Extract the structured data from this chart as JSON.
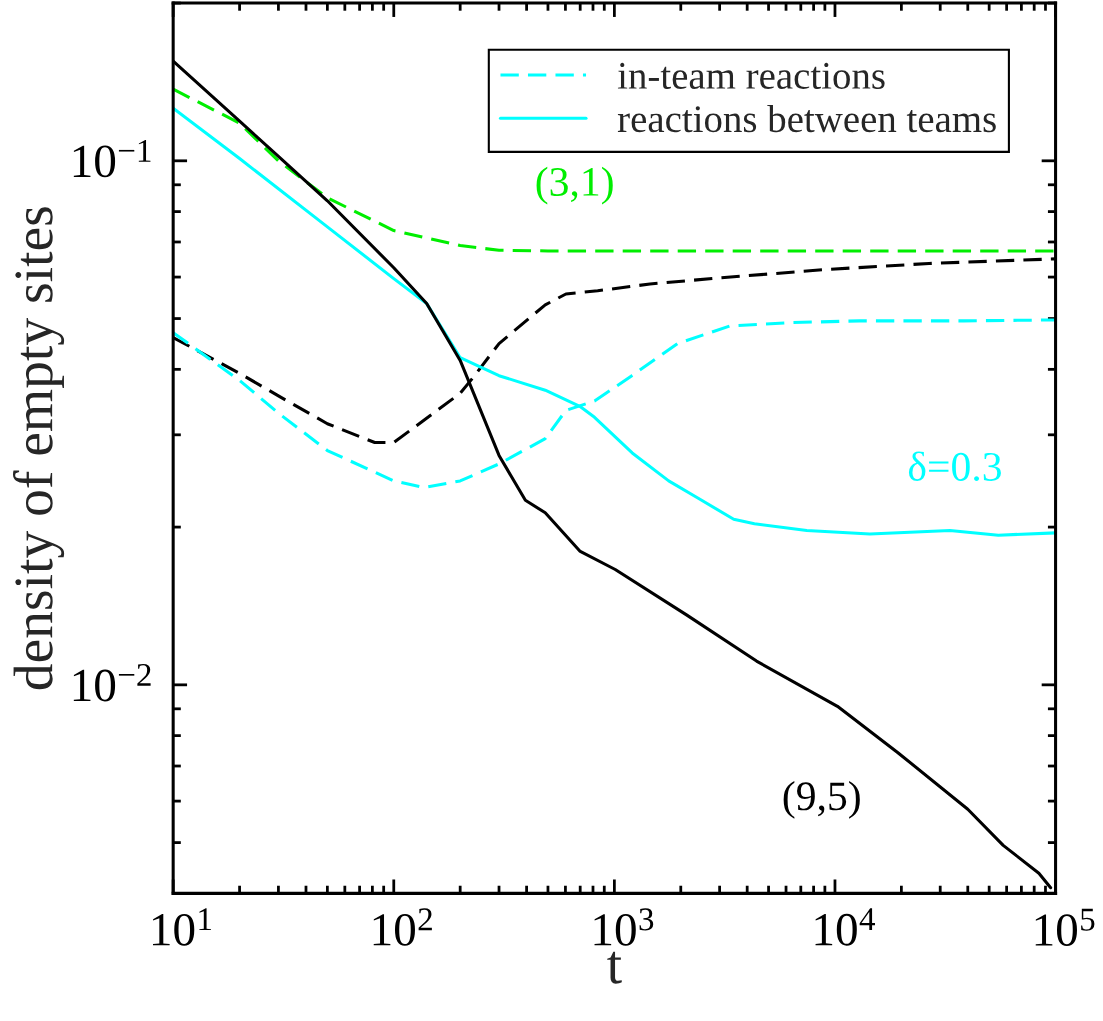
{
  "chart_data": {
    "type": "line",
    "xlabel": "t",
    "ylabel": "density of empty sites",
    "log": "xy",
    "xlim": [
      10,
      100000
    ],
    "ylim": [
      0.004,
      0.2
    ],
    "xticks": [
      {
        "value": 10,
        "label": "10$^{1}$"
      },
      {
        "value": 100,
        "label": "10$^{2}$"
      },
      {
        "value": 1000,
        "label": "10$^{3}$"
      },
      {
        "value": 10000,
        "label": "10$^{4}$"
      },
      {
        "value": 100000,
        "label": "10$^{5}$"
      }
    ],
    "yticks": [
      {
        "value": 0.01,
        "label": "10$^{−2}$"
      },
      {
        "value": 0.1,
        "label": "10$^{−1}$"
      }
    ],
    "grid": false,
    "legend": "top right",
    "series": [
      {
        "color": "#00ee00",
        "line_style": "dashed",
        "x": [
          10,
          20,
          30,
          50,
          100,
          200,
          300,
          500,
          1000,
          3000,
          10000,
          30000,
          100000
        ],
        "values": [
          0.137,
          0.118,
          0.1,
          0.085,
          0.0736,
          0.0689,
          0.0675,
          0.0673,
          0.0673,
          0.0673,
          0.0673,
          0.0673,
          0.0673
        ]
      },
      {
        "color": "#000000",
        "line_style": "dashed",
        "x": [
          10,
          20,
          30,
          50,
          82,
          100,
          200,
          229,
          300,
          486,
          603,
          840,
          1450,
          3010,
          8970,
          26700,
          100000
        ],
        "values": [
          0.046,
          0.0393,
          0.0356,
          0.0315,
          0.029,
          0.029,
          0.036,
          0.0386,
          0.0448,
          0.0531,
          0.0557,
          0.0565,
          0.0582,
          0.0598,
          0.062,
          0.0637,
          0.065
        ]
      },
      {
        "name": "in-team reactions",
        "color": "#00ffff",
        "line_style": "dashed",
        "x": [
          10,
          20,
          30,
          50,
          100,
          137,
          200,
          300,
          486,
          603,
          813,
          1200,
          1932,
          3335,
          6190,
          12900,
          38400,
          100000
        ],
        "values": [
          0.047,
          0.0381,
          0.033,
          0.028,
          0.0245,
          0.0238,
          0.0245,
          0.0264,
          0.0295,
          0.0334,
          0.0348,
          0.0389,
          0.0448,
          0.0484,
          0.0491,
          0.0495,
          0.0495,
          0.0497
        ]
      },
      {
        "name": "reactions between teams",
        "color": "#00ffff",
        "line_style": "solid",
        "x": [
          10,
          20,
          50,
          100,
          141,
          200,
          300,
          486,
          697,
          813,
          1205,
          1763,
          2400,
          3475,
          4315,
          7450,
          14400,
          33200,
          55000,
          100000
        ],
        "values": [
          0.126,
          0.101,
          0.0748,
          0.0596,
          0.0534,
          0.0421,
          0.0389,
          0.0365,
          0.034,
          0.0324,
          0.0277,
          0.0245,
          0.0227,
          0.0207,
          0.0203,
          0.0197,
          0.0194,
          0.0197,
          0.0193,
          0.0195
        ]
      },
      {
        "color": "#000000",
        "line_style": "solid",
        "x": [
          10,
          20,
          30,
          50,
          100,
          141,
          200,
          300,
          395,
          486,
          697,
          1009,
          2123,
          4410,
          10260,
          19230,
          40000,
          57900,
          84000,
          95000
        ],
        "values": [
          0.155,
          0.119,
          0.102,
          0.0839,
          0.0625,
          0.0534,
          0.0416,
          0.0274,
          0.0225,
          0.0213,
          0.018,
          0.0166,
          0.0136,
          0.0111,
          0.0091,
          0.00743,
          0.00579,
          0.00494,
          0.00437,
          0.0041
        ]
      }
    ],
    "annotations": [
      "(3,1)",
      "δ=0.3",
      "(9,5)"
    ]
  }
}
